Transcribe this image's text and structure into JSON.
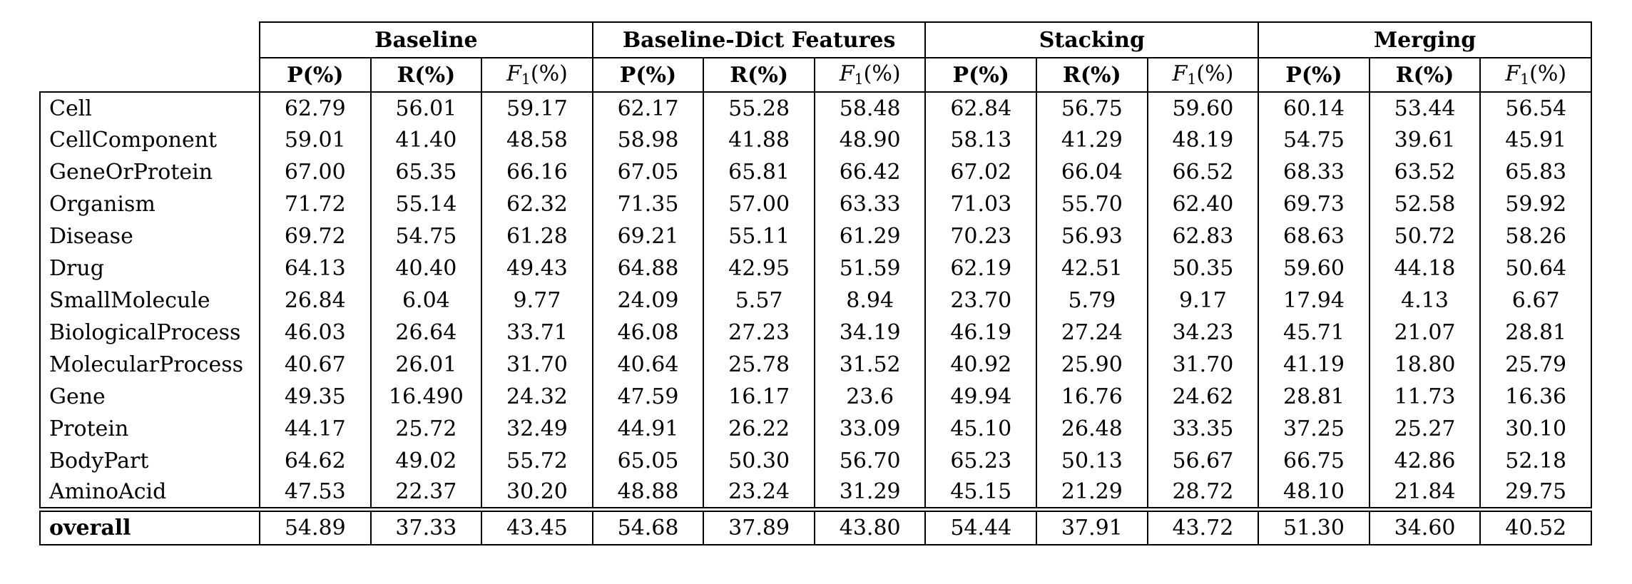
{
  "colors": {
    "text": "#000000",
    "background": "#ffffff",
    "border": "#000000"
  },
  "table": {
    "groups": [
      {
        "label": "Baseline"
      },
      {
        "label": "Baseline-Dict Features"
      },
      {
        "label": "Stacking"
      },
      {
        "label": "Merging"
      }
    ],
    "metric_headers": [
      {
        "type": "plain",
        "text": "P(%)"
      },
      {
        "type": "plain",
        "text": "R(%)"
      },
      {
        "type": "f1",
        "prefix": "F",
        "sub": "1",
        "suffix": "(%)"
      }
    ],
    "rows": [
      {
        "label": "Cell",
        "values": [
          "62.79",
          "56.01",
          "59.17",
          "62.17",
          "55.28",
          "58.48",
          "62.84",
          "56.75",
          "59.60",
          "60.14",
          "53.44",
          "56.54"
        ]
      },
      {
        "label": "CellComponent",
        "values": [
          "59.01",
          "41.40",
          "48.58",
          "58.98",
          "41.88",
          "48.90",
          "58.13",
          "41.29",
          "48.19",
          "54.75",
          "39.61",
          "45.91"
        ]
      },
      {
        "label": "GeneOrProtein",
        "values": [
          "67.00",
          "65.35",
          "66.16",
          "67.05",
          "65.81",
          "66.42",
          "67.02",
          "66.04",
          "66.52",
          "68.33",
          "63.52",
          "65.83"
        ]
      },
      {
        "label": "Organism",
        "values": [
          "71.72",
          "55.14",
          "62.32",
          "71.35",
          "57.00",
          "63.33",
          "71.03",
          "55.70",
          "62.40",
          "69.73",
          "52.58",
          "59.92"
        ]
      },
      {
        "label": "Disease",
        "values": [
          "69.72",
          "54.75",
          "61.28",
          "69.21",
          "55.11",
          "61.29",
          "70.23",
          "56.93",
          "62.83",
          "68.63",
          "50.72",
          "58.26"
        ]
      },
      {
        "label": "Drug",
        "values": [
          "64.13",
          "40.40",
          "49.43",
          "64.88",
          "42.95",
          "51.59",
          "62.19",
          "42.51",
          "50.35",
          "59.60",
          "44.18",
          "50.64"
        ]
      },
      {
        "label": "SmallMolecule",
        "values": [
          "26.84",
          "6.04",
          "9.77",
          "24.09",
          "5.57",
          "8.94",
          "23.70",
          "5.79",
          "9.17",
          "17.94",
          "4.13",
          "6.67"
        ]
      },
      {
        "label": "BiologicalProcess",
        "values": [
          "46.03",
          "26.64",
          "33.71",
          "46.08",
          "27.23",
          "34.19",
          "46.19",
          "27.24",
          "34.23",
          "45.71",
          "21.07",
          "28.81"
        ]
      },
      {
        "label": "MolecularProcess",
        "values": [
          "40.67",
          "26.01",
          "31.70",
          "40.64",
          "25.78",
          "31.52",
          "40.92",
          "25.90",
          "31.70",
          "41.19",
          "18.80",
          "25.79"
        ]
      },
      {
        "label": "Gene",
        "values": [
          "49.35",
          "16.490",
          "24.32",
          "47.59",
          "16.17",
          "23.6",
          "49.94",
          "16.76",
          "24.62",
          "28.81",
          "11.73",
          "16.36"
        ]
      },
      {
        "label": "Protein",
        "values": [
          "44.17",
          "25.72",
          "32.49",
          "44.91",
          "26.22",
          "33.09",
          "45.10",
          "26.48",
          "33.35",
          "37.25",
          "25.27",
          "30.10"
        ]
      },
      {
        "label": "BodyPart",
        "values": [
          "64.62",
          "49.02",
          "55.72",
          "65.05",
          "50.30",
          "56.70",
          "65.23",
          "50.13",
          "56.67",
          "66.75",
          "42.86",
          "52.18"
        ]
      },
      {
        "label": "AminoAcid",
        "values": [
          "47.53",
          "22.37",
          "30.20",
          "48.88",
          "23.24",
          "31.29",
          "45.15",
          "21.29",
          "28.72",
          "48.10",
          "21.84",
          "29.75"
        ]
      }
    ],
    "overall_row": {
      "label": "overall",
      "values": [
        "54.89",
        "37.33",
        "43.45",
        "54.68",
        "37.89",
        "43.80",
        "54.44",
        "37.91",
        "43.72",
        "51.30",
        "34.60",
        "40.52"
      ]
    }
  }
}
